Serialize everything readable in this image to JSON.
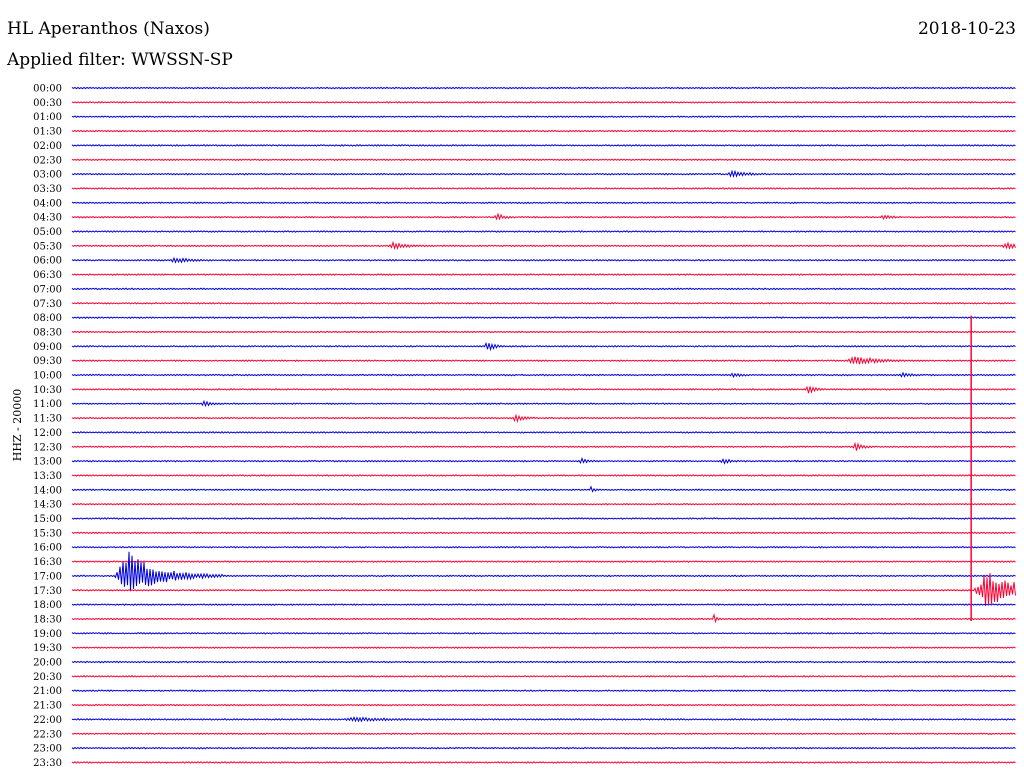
{
  "header": {
    "station": "HL Aperanthos (Naxos)",
    "date": "2018-10-23",
    "filter": "Applied filter: WWSSN-SP"
  },
  "chart_data": {
    "type": "line",
    "title": "HL Aperanthos (Naxos)",
    "subtitle": "Applied filter: WWSSN-SP",
    "ylabel": "HHZ - 20000",
    "xlabel": "",
    "grid": false,
    "trace_colors": [
      "#0000dd",
      "#ff0033"
    ],
    "rows": [
      "00:00",
      "00:30",
      "01:00",
      "01:30",
      "02:00",
      "02:30",
      "03:00",
      "03:30",
      "04:00",
      "04:30",
      "05:00",
      "05:30",
      "06:00",
      "06:30",
      "07:00",
      "07:30",
      "08:00",
      "08:30",
      "09:00",
      "09:30",
      "10:00",
      "10:30",
      "11:00",
      "11:30",
      "12:00",
      "12:30",
      "13:00",
      "13:30",
      "14:00",
      "14:30",
      "15:00",
      "15:30",
      "16:00",
      "16:30",
      "17:00",
      "17:30",
      "18:00",
      "18:30",
      "19:00",
      "19:30",
      "20:00",
      "20:30",
      "21:00",
      "21:30",
      "22:00",
      "22:30",
      "23:00",
      "23:30"
    ],
    "events": [
      {
        "row": 6,
        "pos": 0.7,
        "amp": 6,
        "width": 0.02
      },
      {
        "row": 9,
        "pos": 0.45,
        "amp": 8,
        "width": 0.01
      },
      {
        "row": 9,
        "pos": 0.86,
        "amp": 5,
        "width": 0.01
      },
      {
        "row": 11,
        "pos": 0.34,
        "amp": 6,
        "width": 0.02
      },
      {
        "row": 11,
        "pos": 0.99,
        "amp": 7,
        "width": 0.015
      },
      {
        "row": 12,
        "pos": 0.11,
        "amp": 5,
        "width": 0.02
      },
      {
        "row": 18,
        "pos": 0.44,
        "amp": 10,
        "width": 0.01
      },
      {
        "row": 19,
        "pos": 0.83,
        "amp": 9,
        "width": 0.03
      },
      {
        "row": 20,
        "pos": 0.7,
        "amp": 5,
        "width": 0.01
      },
      {
        "row": 20,
        "pos": 0.88,
        "amp": 6,
        "width": 0.01
      },
      {
        "row": 21,
        "pos": 0.78,
        "amp": 7,
        "width": 0.01
      },
      {
        "row": 22,
        "pos": 0.14,
        "amp": 6,
        "width": 0.01
      },
      {
        "row": 23,
        "pos": 0.47,
        "amp": 9,
        "width": 0.01
      },
      {
        "row": 25,
        "pos": 0.83,
        "amp": 9,
        "width": 0.01
      },
      {
        "row": 26,
        "pos": 0.54,
        "amp": 5,
        "width": 0.01
      },
      {
        "row": 26,
        "pos": 0.69,
        "amp": 5,
        "width": 0.01
      },
      {
        "row": 28,
        "pos": 0.55,
        "amp": 6,
        "width": 0.005
      },
      {
        "row": 34,
        "pos": 0.06,
        "amp": 48,
        "width": 0.05
      },
      {
        "row": 35,
        "pos": 0.97,
        "amp": 40,
        "width": 0.05
      },
      {
        "row": 37,
        "pos": 0.68,
        "amp": 8,
        "width": 0.005
      },
      {
        "row": 44,
        "pos": 0.3,
        "amp": 4,
        "width": 0.04
      }
    ],
    "spike": {
      "row_from": 16,
      "row_to": 37,
      "pos": 0.9525
    }
  }
}
